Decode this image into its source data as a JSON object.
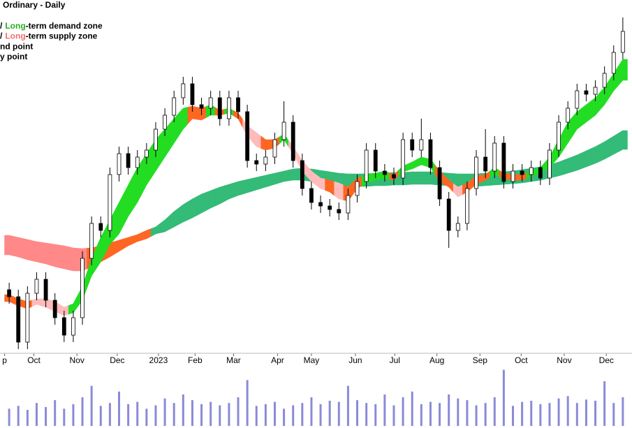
{
  "chart_data": {
    "type": "candlestick",
    "title": "Ordinary - Daily",
    "legend": [
      {
        "parts": [
          {
            "text": "/"
          },
          {
            "text": "Long",
            "color": "#22b022"
          },
          {
            "text": "-term demand zone"
          }
        ]
      },
      {
        "parts": [
          {
            "text": "/"
          },
          {
            "text": "Long",
            "color": "#f07070"
          },
          {
            "text": "-term supply zone"
          }
        ]
      },
      {
        "parts": [
          {
            "text": "nd point"
          }
        ]
      },
      {
        "parts": [
          {
            "text": "y point"
          }
        ]
      }
    ],
    "x": [
      0,
      1,
      2,
      3,
      4,
      5,
      6,
      7,
      8,
      9,
      10,
      11,
      12,
      13,
      14,
      15,
      16,
      17,
      18,
      19,
      20,
      21,
      22,
      23,
      24,
      25,
      26,
      27,
      28,
      29,
      30,
      31,
      32,
      33,
      34,
      35,
      36,
      37,
      38,
      39,
      40,
      41,
      42,
      43,
      44,
      45,
      46,
      47,
      48,
      49,
      50,
      51,
      52,
      53,
      54,
      55,
      56,
      57,
      58,
      59,
      60,
      61,
      62,
      63,
      64,
      65,
      66,
      67
    ],
    "xlim": [
      -1,
      68
    ],
    "xticks": [
      {
        "value": -0.5,
        "label": "p"
      },
      {
        "value": 2.7,
        "label": "Oct"
      },
      {
        "value": 7.4,
        "label": "Nov"
      },
      {
        "value": 11.8,
        "label": "Dec"
      },
      {
        "value": 16.3,
        "label": "2023"
      },
      {
        "value": 20.3,
        "label": "Feb"
      },
      {
        "value": 24.5,
        "label": "Mar"
      },
      {
        "value": 29.3,
        "label": "Apr"
      },
      {
        "value": 33.0,
        "label": "May"
      },
      {
        "value": 37.8,
        "label": "Jun"
      },
      {
        "value": 42.1,
        "label": "Jul"
      },
      {
        "value": 46.7,
        "label": "Aug"
      },
      {
        "value": 51.4,
        "label": "Sep"
      },
      {
        "value": 55.9,
        "label": "Oct"
      },
      {
        "value": 60.6,
        "label": "Nov"
      },
      {
        "value": 65.2,
        "label": "Dec"
      }
    ],
    "ylim": [
      0,
      101
    ],
    "open": [
      18,
      16,
      3,
      17,
      21,
      15,
      10,
      5,
      10,
      27,
      37,
      35,
      51,
      57,
      53,
      56,
      58,
      64,
      68,
      73,
      77,
      71,
      70,
      73,
      67,
      73,
      69,
      55,
      54,
      56,
      61,
      66,
      55,
      47,
      43,
      42,
      41,
      40,
      45,
      49,
      58,
      52,
      51,
      50,
      61,
      58,
      61,
      53,
      44,
      35,
      37,
      47,
      56,
      52,
      60,
      49,
      52,
      51,
      53,
      50,
      58,
      66,
      70,
      75,
      74,
      76,
      80,
      86
    ],
    "high": [
      20,
      18,
      19,
      23,
      23,
      17,
      12,
      12,
      29,
      39,
      39,
      53,
      59,
      59,
      58,
      60,
      66,
      70,
      75,
      79,
      79,
      73,
      75,
      75,
      75,
      75,
      71,
      57,
      58,
      63,
      72,
      68,
      57,
      49,
      45,
      44,
      43,
      47,
      51,
      60,
      60,
      54,
      53,
      63,
      63,
      67,
      63,
      55,
      46,
      39,
      49,
      58,
      64,
      62,
      62,
      54,
      54,
      55,
      55,
      60,
      68,
      72,
      77,
      77,
      78,
      82,
      88,
      96
    ],
    "low": [
      14,
      1,
      1,
      15,
      13,
      8,
      3,
      3,
      8,
      25,
      33,
      33,
      49,
      51,
      51,
      54,
      56,
      62,
      66,
      71,
      69,
      68,
      68,
      65,
      65,
      67,
      53,
      52,
      52,
      54,
      59,
      53,
      45,
      41,
      40,
      39,
      38,
      38,
      43,
      47,
      50,
      49,
      48,
      48,
      56,
      56,
      51,
      42,
      30,
      33,
      35,
      45,
      50,
      50,
      47,
      47,
      49,
      49,
      48,
      48,
      56,
      64,
      68,
      72,
      72,
      74,
      78,
      84
    ],
    "close": [
      16,
      3,
      17,
      21,
      15,
      10,
      5,
      10,
      27,
      37,
      35,
      51,
      57,
      53,
      56,
      58,
      64,
      68,
      73,
      77,
      71,
      70,
      73,
      67,
      73,
      69,
      55,
      54,
      56,
      61,
      66,
      55,
      47,
      43,
      42,
      41,
      40,
      45,
      49,
      58,
      52,
      51,
      50,
      61,
      58,
      61,
      53,
      44,
      35,
      37,
      47,
      56,
      52,
      60,
      49,
      52,
      51,
      53,
      50,
      58,
      66,
      70,
      75,
      74,
      76,
      80,
      86,
      92
    ],
    "up_color": "#ffffff",
    "down_color": "#000000",
    "bands": [
      {
        "upper": [
          33.6,
          33,
          32.4,
          31.8,
          31.4,
          31,
          30.6,
          30,
          29.8,
          30,
          30.6,
          31.4,
          32.2,
          33,
          33.8,
          35,
          36,
          38,
          40.4,
          42.4,
          44,
          45.4,
          46.4,
          47.4,
          48.2,
          49,
          49.6,
          50.2,
          50.8,
          51.4,
          52,
          52.6,
          52.8,
          52.6,
          52.2,
          51.8,
          51.4,
          51.2,
          51.2,
          51.2,
          51.4,
          51.4,
          51.6,
          51.6,
          51.8,
          51.8,
          51.8,
          51.6,
          51.4,
          51.2,
          51.2,
          51.2,
          51.4,
          51.6,
          51.8,
          52,
          52.4,
          52.8,
          53.2,
          53.8,
          54.6,
          55.6,
          56.6,
          57.8,
          59,
          60.4,
          62,
          63.6
        ],
        "lower": [
          28,
          27.4,
          26.6,
          26,
          25.4,
          24.6,
          24,
          23.4,
          23.4,
          24.6,
          26,
          27.4,
          29,
          30.6,
          31.8,
          32.6,
          34,
          34.6,
          36,
          37.4,
          38.6,
          40,
          41.4,
          42.6,
          44,
          45,
          45.8,
          46.6,
          47.4,
          48.2,
          49,
          49.4,
          49.4,
          49,
          48.6,
          48.2,
          47.8,
          47.6,
          47.6,
          47.6,
          47.8,
          47.8,
          48,
          48,
          48.2,
          48.2,
          48.2,
          48,
          47.8,
          47.6,
          47.6,
          47.6,
          47.8,
          48,
          48.2,
          48.4,
          48.6,
          49,
          49.4,
          50,
          50.6,
          51.4,
          52.2,
          53.2,
          54.2,
          55.4,
          56.8,
          58.2
        ],
        "colors": [
          "#f88",
          "#f88",
          "#f88",
          "#f88",
          "#f88",
          "#f88",
          "#f88",
          "#f88",
          "#f88",
          "#f62",
          "#f62",
          "#f62",
          "#f62",
          "#f62",
          "#f62",
          "#f62",
          "#3b7",
          "#3b7",
          "#3b7",
          "#3b7",
          "#3b7",
          "#3b7",
          "#3b7",
          "#3b7",
          "#3b7",
          "#3b7",
          "#3b7",
          "#3b7",
          "#3b7",
          "#3b7",
          "#3b7",
          "#3b7",
          "#3b7",
          "#3b7",
          "#3b7",
          "#3b7",
          "#3b7",
          "#3b7",
          "#3b7",
          "#3b7",
          "#3b7",
          "#3b7",
          "#3b7",
          "#3b7",
          "#3b7",
          "#3b7",
          "#3b7",
          "#3b7",
          "#3b7",
          "#3b7",
          "#3b7",
          "#3b7",
          "#3b7",
          "#3b7",
          "#3b7",
          "#3b7",
          "#3b7",
          "#3b7",
          "#3b7",
          "#3b7",
          "#3b7",
          "#3b7",
          "#3b7",
          "#3b7",
          "#3b7",
          "#3b7",
          "#3b7",
          "#3b7"
        ]
      },
      {
        "upper": [
          16.6,
          15.4,
          14.6,
          15.4,
          15.4,
          14.6,
          13,
          14,
          19,
          27,
          33,
          38,
          43,
          48,
          53,
          57,
          61,
          64,
          67,
          70,
          70.6,
          70,
          71,
          69.4,
          70,
          68.6,
          65,
          63,
          61,
          61,
          62.6,
          59,
          55,
          52,
          50,
          49.4,
          48.6,
          47.4,
          50,
          51,
          51.4,
          52,
          51,
          53.4,
          54.6,
          56,
          55.4,
          52,
          49.4,
          47.4,
          48.6,
          50.6,
          51,
          53,
          51.4,
          51,
          51,
          52,
          53,
          56,
          61,
          66,
          69,
          71,
          73,
          76,
          80,
          84
        ],
        "lower": [
          14.6,
          13.4,
          12.6,
          13.8,
          13,
          11.8,
          10.6,
          11.4,
          15,
          22,
          26,
          31,
          34,
          39,
          43,
          48,
          52,
          56,
          60,
          64,
          67,
          66.6,
          68,
          68,
          68.6,
          67,
          62,
          59,
          58,
          58.6,
          61,
          57,
          52,
          49,
          47,
          46,
          44,
          43.4,
          47,
          48.6,
          49.4,
          50,
          49.4,
          51.8,
          52.6,
          53.8,
          53,
          49,
          47.4,
          44.6,
          46,
          48.2,
          49.4,
          51,
          49.8,
          49.4,
          49.4,
          50.6,
          51.4,
          53,
          56,
          60,
          64,
          66,
          68,
          71,
          75,
          78
        ],
        "colors": [
          "#f62",
          "#f62",
          "#f62",
          "#fbb",
          "#fbb",
          "#fbb",
          "#fbb",
          "#2d2",
          "#2d2",
          "#2d2",
          "#2d2",
          "#2d2",
          "#2d2",
          "#2d2",
          "#2d2",
          "#2d2",
          "#2d2",
          "#2d2",
          "#2d2",
          "#2d2",
          "#f62",
          "#f62",
          "#2d2",
          "#f62",
          "#2d2",
          "#f62",
          "#fbb",
          "#fbb",
          "#f62",
          "#f62",
          "#2d2",
          "#fbb",
          "#fbb",
          "#fbb",
          "#fbb",
          "#f62",
          "#fbb",
          "#f62",
          "#f62",
          "#2d2",
          "#2d2",
          "#2d2",
          "#f62",
          "#2d2",
          "#2d2",
          "#2d2",
          "#2d2",
          "#f62",
          "#f62",
          "#fbb",
          "#f62",
          "#f62",
          "#f62",
          "#2d2",
          "#f62",
          "#f62",
          "#f62",
          "#2d2",
          "#2d2",
          "#2d2",
          "#2d2",
          "#2d2",
          "#2d2",
          "#2d2",
          "#2d2",
          "#2d2",
          "#2d2",
          "#2d2"
        ]
      }
    ],
    "volume": {
      "values": [
        30,
        35,
        28,
        40,
        33,
        45,
        30,
        38,
        50,
        70,
        35,
        40,
        60,
        38,
        42,
        30,
        36,
        48,
        40,
        55,
        45,
        38,
        42,
        36,
        40,
        50,
        80,
        35,
        38,
        42,
        30,
        36,
        40,
        50,
        38,
        44,
        42,
        70,
        45,
        40,
        38,
        55,
        36,
        50,
        60,
        38,
        42,
        40,
        55,
        48,
        45,
        36,
        40,
        50,
        98,
        35,
        42,
        44,
        38,
        40,
        48,
        52,
        40,
        46,
        44,
        78,
        40,
        50
      ],
      "ylim": [
        0,
        100
      ],
      "color": "#8a8ad8"
    }
  }
}
